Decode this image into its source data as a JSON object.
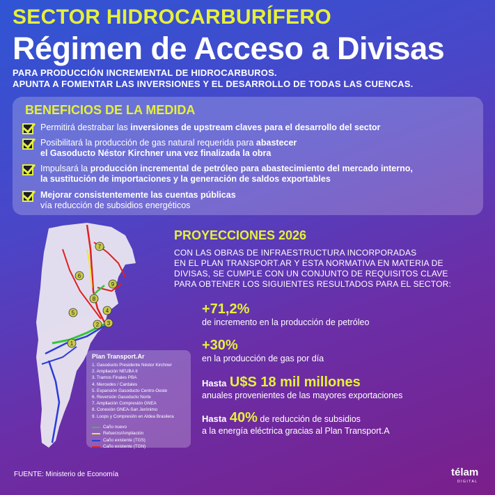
{
  "header": {
    "kicker": "SECTOR HIDROCARBURÍFERO",
    "title": "Régimen de Acceso a Divisas",
    "subtitle_line1": "PARA PRODUCCIÓN INCREMENTAL DE HIDROCARBUROS.",
    "subtitle_line2": "APUNTA A  FOMENTAR LAS INVERSIONES Y EL DESARROLLO DE TODAS LAS CUENCAS."
  },
  "benefits": {
    "title": "BENEFICIOS DE LA MEDIDA",
    "items": [
      {
        "plain1": "Permitirá destrabar las ",
        "bold1": "inversiones de upstream claves para el desarrollo del sector"
      },
      {
        "plain1": "Posibilitará la producción de gas natural requerida para ",
        "bold1": "abastecer",
        "bold2": "el Gasoducto Néstor Kirchner una vez finalizada la obra"
      },
      {
        "plain1": "Impulsará la ",
        "bold1": "producción incremental de petróleo para abastecimiento del mercado interno,",
        "bold2": "la sustitución de importaciones y la generación de saldos exportables"
      },
      {
        "bold1": "Mejorar consistentemente las cuentas públicas",
        "plain2": "vía reducción de subsidios energéticos"
      }
    ]
  },
  "projections": {
    "title": "PROYECCIONES 2026",
    "intro_lines": [
      "CON  LAS OBRAS DE INFRAESTRUCTURA INCORPORADAS",
      "EN EL PLAN TRANSPORT.AR Y ESTA NORMATIVA EN MATERIA DE",
      "DIVISAS, SE CUMPLE CON UN CONJUNTO DE REQUISITOS CLAVE",
      "PARA OBTENER LOS SIGUIENTES RESULTADOS PARA EL SECTOR:"
    ],
    "stats": [
      {
        "big": "+71,2%",
        "desc": "de incremento en la producción de petróleo"
      },
      {
        "big": "+30%",
        "desc": "en la producción de gas por día"
      },
      {
        "pre": "Hasta",
        "big": "U$S 18 mil millones",
        "desc": "anuales provenientes de las mayores exportaciones"
      },
      {
        "pre": "Hasta",
        "big": "40%",
        "post": " de reducción de subsidios",
        "desc": "a la energía eléctrica gracias al Plan Transport.A"
      }
    ]
  },
  "map": {
    "markers": [
      "1",
      "2",
      "3",
      "4",
      "5",
      "6",
      "7",
      "8",
      "9"
    ],
    "legend_title": "Plan Transport.Ar",
    "legend_items": [
      "1. Gasoducto Presidente Néstor Kirchner",
      "2. Ampliación NEUBA II",
      "3. Tramos Finales PBA",
      "4. Mercedes / Cardales",
      "5. Expansión Gasoducto Centro-Oeste",
      "6. Reversión Gasoducto Norte",
      "7. Ampliación Compresión GNEA",
      "8. Conexión GNEA-San Jerónimo",
      "9. Loops y Compresión en Aldea Brasilera"
    ],
    "line_types": [
      {
        "label": "Caño nuevo",
        "color": "#35c43a"
      },
      {
        "label": "Refuerzo/Ampliación",
        "color": "#e8e840"
      },
      {
        "label": "Caño existente (TGS)",
        "color": "#2a3cd8"
      },
      {
        "label": "Caño existente (TGN)",
        "color": "#e02020"
      }
    ]
  },
  "footer": {
    "source": "FUENTE: Ministerio de Economía",
    "logo": "télam",
    "logo_sub": "DIGITAL"
  },
  "colors": {
    "accent": "#e6f03a",
    "panel": "rgba(255,255,255,0.22)"
  }
}
